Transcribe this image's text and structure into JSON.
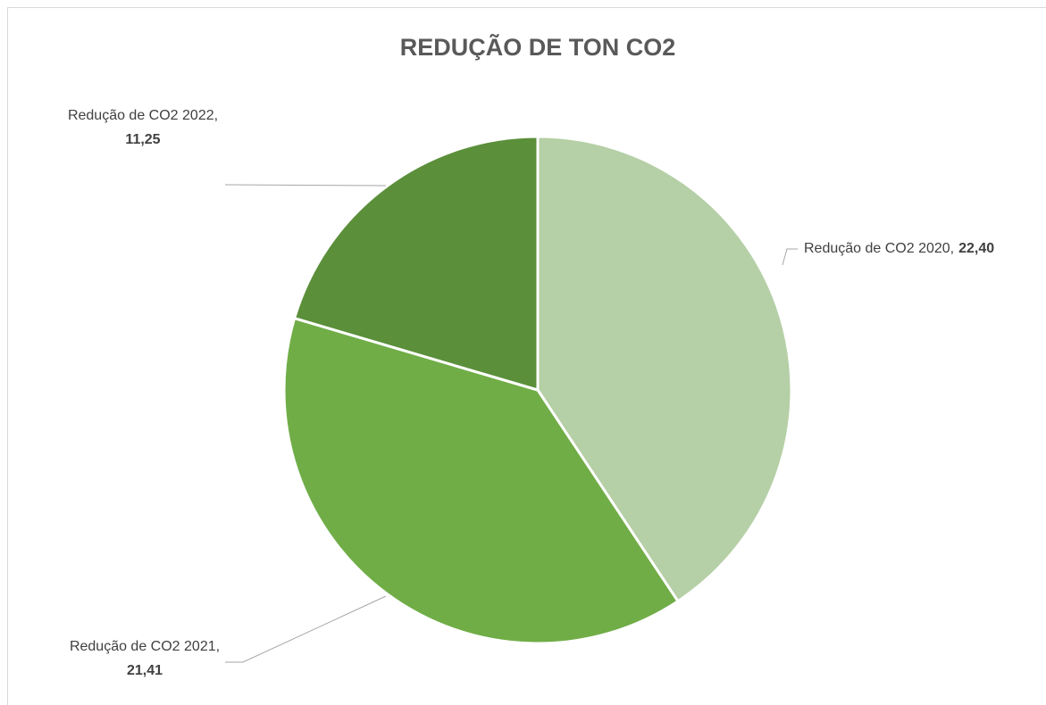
{
  "chart_data": {
    "type": "pie",
    "title": "REDUÇÃO DE TON CO2",
    "categories": [
      "Redução de CO2 2020",
      "Redução de CO2 2021",
      "Redução de CO2 2022"
    ],
    "values": [
      22.4,
      21.41,
      11.25
    ],
    "value_labels": [
      "22,40",
      "21,41",
      "11,25"
    ],
    "label_separator": ",",
    "colors": [
      "#b5cfa6",
      "#70ad47",
      "#5b8f3a"
    ]
  }
}
